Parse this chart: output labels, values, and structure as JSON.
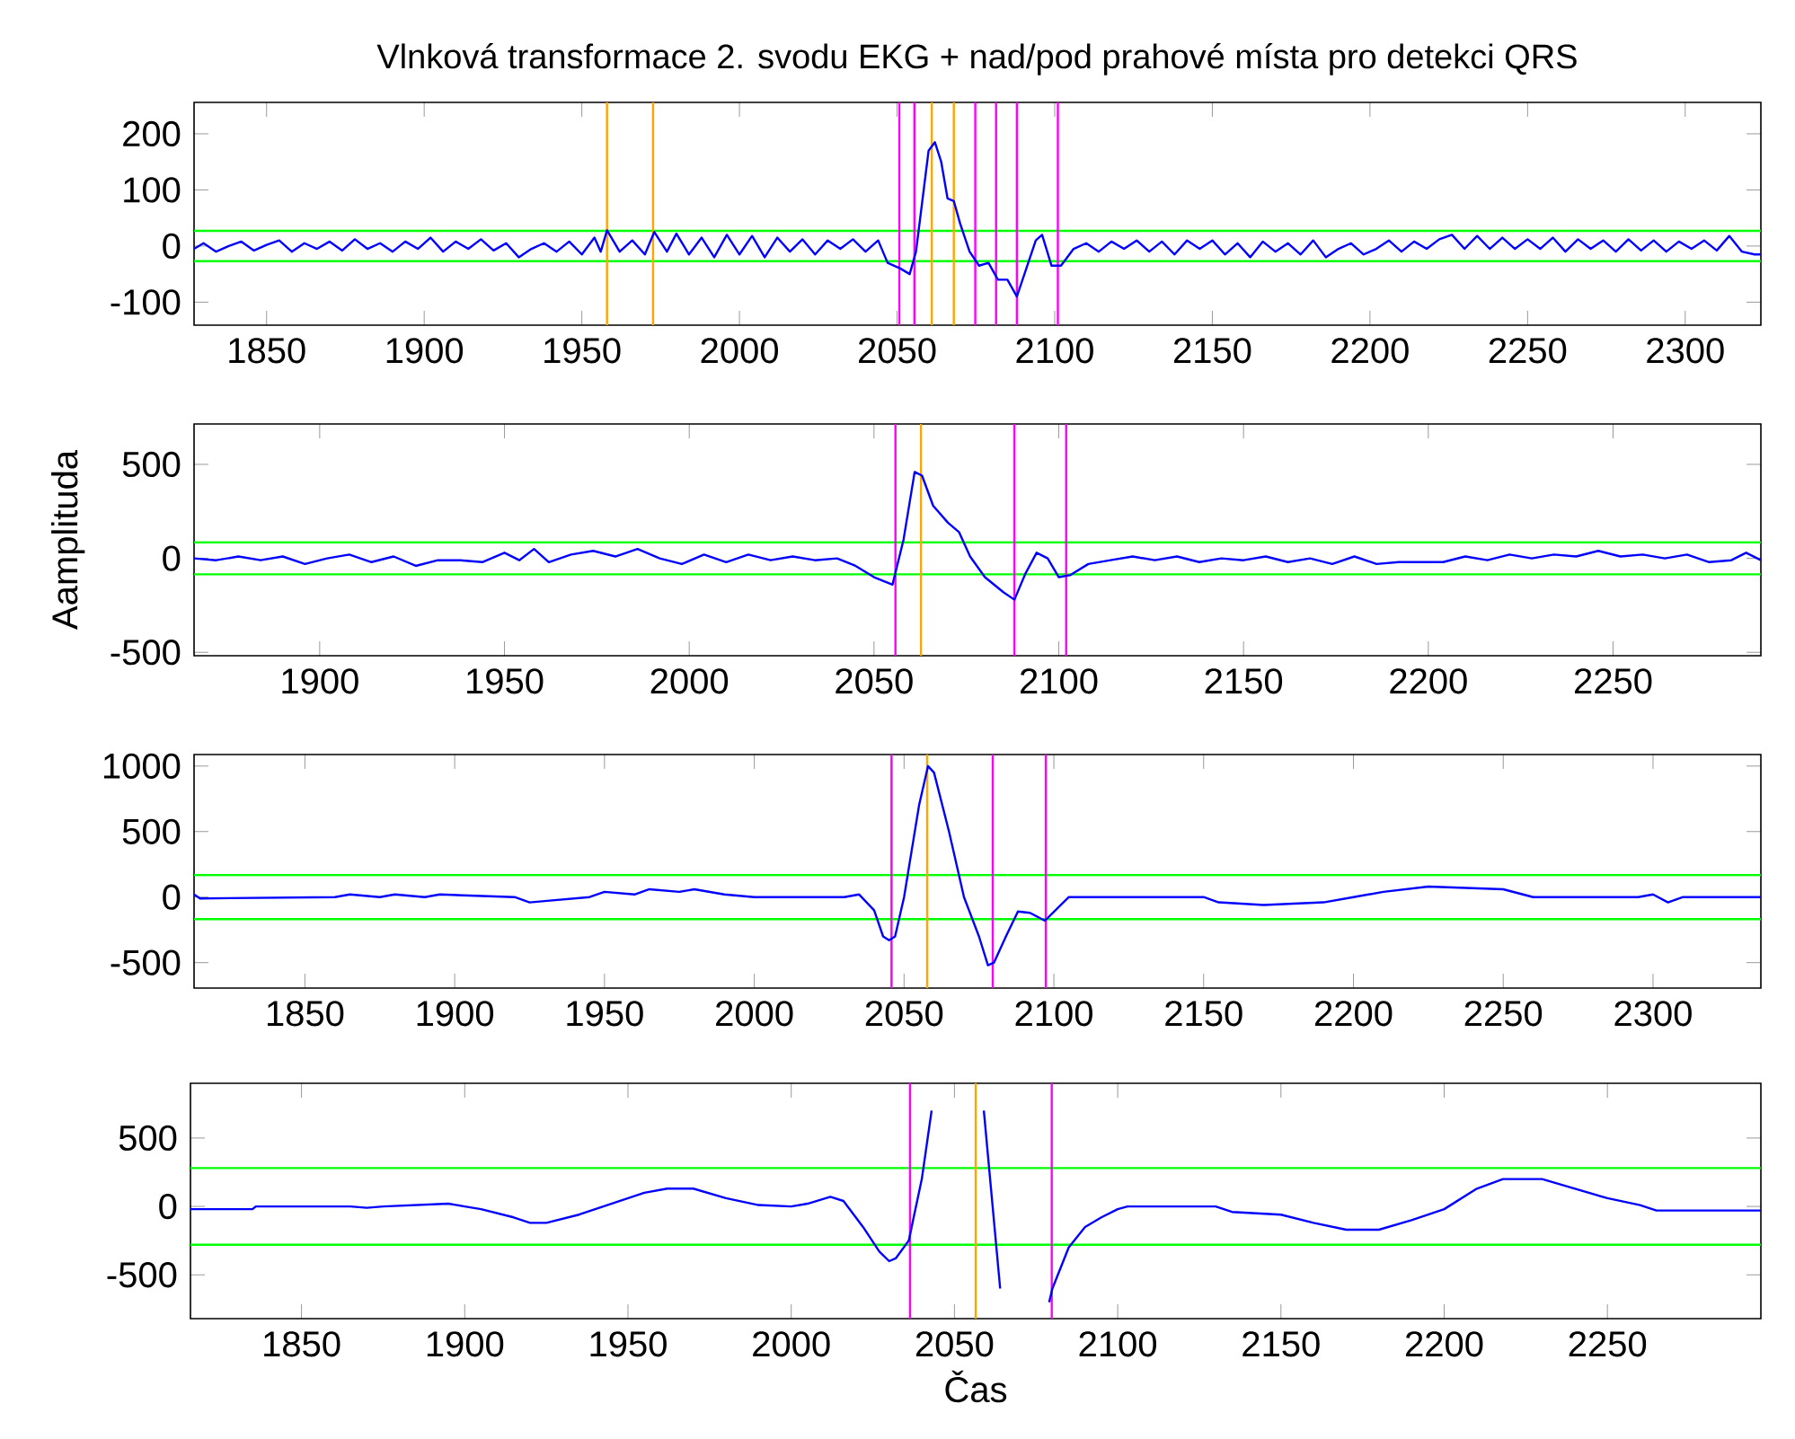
{
  "chart_data": [
    {
      "type": "line",
      "title": "Vlnková transformace 2. svodu EKG + nad/pod prahové místa pro detekci QRS",
      "x": [
        1827,
        1830,
        1834,
        1838,
        1842,
        1846,
        1850,
        1854,
        1858,
        1862,
        1866,
        1870,
        1874,
        1878,
        1882,
        1886,
        1890,
        1894,
        1898,
        1902,
        1906,
        1910,
        1914,
        1918,
        1922,
        1926,
        1930,
        1934,
        1938,
        1942,
        1946,
        1950,
        1954,
        1956,
        1958,
        1962,
        1966,
        1970,
        1973,
        1977,
        1980,
        1984,
        1988,
        1992,
        1996,
        2000,
        2004,
        2008,
        2012,
        2016,
        2020,
        2024,
        2028,
        2032,
        2036,
        2040,
        2044,
        2047,
        2051,
        2054,
        2056,
        2058,
        2060,
        2062,
        2064,
        2066,
        2068,
        2070,
        2073,
        2076,
        2079,
        2082,
        2085,
        2088,
        2091,
        2094,
        2096,
        2099,
        2102,
        2106,
        2110,
        2114,
        2118,
        2122,
        2126,
        2130,
        2134,
        2138,
        2142,
        2146,
        2150,
        2154,
        2158,
        2162,
        2166,
        2170,
        2174,
        2178,
        2182,
        2186,
        2190,
        2194,
        2198,
        2202,
        2206,
        2210,
        2214,
        2218,
        2222,
        2226,
        2230,
        2234,
        2238,
        2242,
        2246,
        2250,
        2254,
        2258,
        2262,
        2266,
        2270,
        2274,
        2278,
        2282,
        2286,
        2290,
        2294,
        2298,
        2302,
        2306,
        2310,
        2314,
        2318,
        2322,
        2324
      ],
      "series": [
        {
          "color": "#0000ff",
          "values": [
            -5,
            5,
            -10,
            0,
            8,
            -8,
            2,
            10,
            -10,
            5,
            -5,
            8,
            -8,
            12,
            -5,
            5,
            -10,
            8,
            -5,
            15,
            -10,
            8,
            -5,
            12,
            -8,
            5,
            -20,
            -5,
            5,
            -10,
            8,
            -15,
            15,
            -10,
            28,
            -10,
            10,
            -15,
            25,
            -10,
            22,
            -15,
            15,
            -20,
            20,
            -15,
            18,
            -20,
            15,
            -10,
            12,
            -15,
            10,
            -5,
            12,
            -10,
            10,
            -30,
            -40,
            -50,
            -10,
            80,
            170,
            185,
            150,
            85,
            80,
            40,
            -10,
            -35,
            -30,
            -60,
            -60,
            -90,
            -40,
            10,
            20,
            -35,
            -35,
            -5,
            5,
            -10,
            8,
            -5,
            10,
            -10,
            8,
            -15,
            10,
            -5,
            10,
            -15,
            5,
            -20,
            8,
            -10,
            5,
            -15,
            10,
            -20,
            -5,
            5,
            -15,
            -5,
            10,
            -10,
            8,
            -5,
            12,
            20,
            -5,
            18,
            -5,
            15,
            -5,
            12,
            -5,
            15,
            -10,
            12,
            -5,
            10,
            -10,
            12,
            -8,
            10,
            -10,
            8,
            -5,
            10,
            -8,
            18,
            -10,
            -15,
            -15
          ]
        }
      ],
      "xlim": [
        1827,
        2324
      ],
      "ylim": [
        -141,
        256
      ],
      "xticks": [
        1850,
        1900,
        1950,
        2000,
        2050,
        2100,
        2150,
        2200,
        2250,
        2300
      ],
      "yticks": [
        -100,
        0,
        100,
        200
      ],
      "ref_lines": [
        {
          "axis": "y",
          "value": 27,
          "color": "#00ff00"
        },
        {
          "axis": "y",
          "value": -27,
          "color": "#00ff00"
        },
        {
          "axis": "x",
          "value": 1958,
          "color": "#ffa500"
        },
        {
          "axis": "x",
          "value": 1972.6,
          "color": "#ffa500"
        },
        {
          "axis": "x",
          "value": 2050.7,
          "color": "#ff00ff"
        },
        {
          "axis": "x",
          "value": 2055.5,
          "color": "#ff00ff"
        },
        {
          "axis": "x",
          "value": 2061,
          "color": "#ffa500"
        },
        {
          "axis": "x",
          "value": 2068,
          "color": "#ffa500"
        },
        {
          "axis": "x",
          "value": 2074.8,
          "color": "#ff00ff"
        },
        {
          "axis": "x",
          "value": 2081.4,
          "color": "#ff00ff"
        },
        {
          "axis": "x",
          "value": 2088,
          "color": "#ff00ff"
        },
        {
          "axis": "x",
          "value": 2101,
          "color": "#ff00ff"
        }
      ]
    },
    {
      "type": "line",
      "ylabel": "Aamplituda",
      "x": [
        1866,
        1872,
        1878,
        1884,
        1890,
        1896,
        1902,
        1908,
        1914,
        1920,
        1926,
        1932,
        1938,
        1944,
        1950,
        1954,
        1958,
        1962,
        1968,
        1974,
        1980,
        1986,
        1992,
        1998,
        2004,
        2010,
        2016,
        2022,
        2028,
        2034,
        2040,
        2045,
        2050,
        2055,
        2058,
        2061,
        2063,
        2066,
        2070,
        2073,
        2076,
        2080,
        2085,
        2088,
        2091,
        2094,
        2097,
        2100,
        2103,
        2108,
        2114,
        2120,
        2126,
        2132,
        2138,
        2144,
        2150,
        2156,
        2162,
        2168,
        2174,
        2180,
        2186,
        2192,
        2198,
        2204,
        2210,
        2216,
        2222,
        2228,
        2234,
        2240,
        2246,
        2252,
        2258,
        2264,
        2270,
        2276,
        2282,
        2286,
        2290
      ],
      "series": [
        {
          "color": "#0000ff",
          "values": [
            0,
            -10,
            10,
            -10,
            10,
            -30,
            0,
            20,
            -20,
            10,
            -40,
            -10,
            -10,
            -20,
            30,
            -10,
            50,
            -20,
            20,
            40,
            10,
            50,
            0,
            -30,
            20,
            -20,
            20,
            -10,
            10,
            -10,
            0,
            -40,
            -100,
            -140,
            100,
            460,
            440,
            280,
            190,
            140,
            10,
            -100,
            -180,
            -220,
            -80,
            30,
            0,
            -100,
            -90,
            -30,
            -10,
            10,
            -10,
            10,
            -20,
            0,
            -10,
            10,
            -20,
            0,
            -30,
            10,
            -30,
            -20,
            -20,
            -20,
            10,
            -10,
            20,
            0,
            20,
            10,
            40,
            10,
            20,
            0,
            20,
            -20,
            -10,
            30,
            -10
          ]
        }
      ],
      "xlim": [
        1866,
        2290
      ],
      "ylim": [
        -518,
        715
      ],
      "xticks": [
        1900,
        1950,
        2000,
        2050,
        2100,
        2150,
        2200,
        2250
      ],
      "yticks": [
        -500,
        0,
        500
      ],
      "ref_lines": [
        {
          "axis": "y",
          "value": 85,
          "color": "#00ff00"
        },
        {
          "axis": "y",
          "value": -85,
          "color": "#00ff00"
        },
        {
          "axis": "x",
          "value": 2055.8,
          "color": "#ff00ff"
        },
        {
          "axis": "x",
          "value": 2062.7,
          "color": "#ffa500"
        },
        {
          "axis": "x",
          "value": 2088,
          "color": "#ff00ff"
        },
        {
          "axis": "x",
          "value": 2102,
          "color": "#ff00ff"
        }
      ]
    },
    {
      "type": "line",
      "x": [
        1813,
        1815,
        1860,
        1865,
        1875,
        1880,
        1890,
        1895,
        1920,
        1925,
        1930,
        1945,
        1950,
        1960,
        1965,
        1975,
        1980,
        1990,
        2000,
        2030,
        2035,
        2040,
        2043,
        2045,
        2047,
        2050,
        2055,
        2058,
        2060,
        2065,
        2070,
        2075,
        2078,
        2080,
        2084,
        2088,
        2092,
        2097,
        2105,
        2150,
        2155,
        2170,
        2190,
        2200,
        2210,
        2225,
        2250,
        2260,
        2295,
        2300,
        2305,
        2310,
        2320,
        2336
      ],
      "series": [
        {
          "color": "#0000ff",
          "values": [
            20,
            -10,
            0,
            20,
            0,
            20,
            0,
            20,
            0,
            -40,
            -30,
            0,
            40,
            20,
            60,
            40,
            60,
            20,
            0,
            0,
            20,
            -100,
            -300,
            -330,
            -300,
            0,
            700,
            1000,
            950,
            500,
            0,
            -300,
            -520,
            -500,
            -300,
            -110,
            -120,
            -180,
            0,
            0,
            -40,
            -60,
            -40,
            0,
            40,
            80,
            60,
            0,
            0,
            20,
            -40,
            0,
            0,
            0
          ]
        }
      ],
      "xlim": [
        1813,
        2336
      ],
      "ylim": [
        -694,
        1088
      ],
      "xticks": [
        1850,
        1900,
        1950,
        2000,
        2050,
        2100,
        2150,
        2200,
        2250,
        2300
      ],
      "yticks": [
        -500,
        0,
        500,
        1000
      ],
      "ref_lines": [
        {
          "axis": "y",
          "value": 168,
          "color": "#00ff00"
        },
        {
          "axis": "y",
          "value": -168,
          "color": "#00ff00"
        },
        {
          "axis": "x",
          "value": 2045.8,
          "color": "#ff00ff"
        },
        {
          "axis": "x",
          "value": 2057.7,
          "color": "#ffa500"
        },
        {
          "axis": "x",
          "value": 2079.6,
          "color": "#ff00ff"
        },
        {
          "axis": "x",
          "value": 2097.3,
          "color": "#ff00ff"
        }
      ]
    },
    {
      "type": "line",
      "xlabel": "Čas",
      "x": [
        1816,
        1835,
        1836,
        1865,
        1870,
        1875,
        1895,
        1900,
        1905,
        1915,
        1920,
        1925,
        1935,
        1945,
        1955,
        1962,
        1970,
        1980,
        1990,
        2000,
        2005,
        2012,
        2016,
        2022,
        2027,
        2030,
        2032,
        2036,
        2040,
        2043,
        2050,
        2059,
        2064,
        2072,
        2079,
        2080,
        2085,
        2090,
        2095,
        2100,
        2103,
        2130,
        2135,
        2150,
        2160,
        2170,
        2180,
        2190,
        2200,
        2210,
        2218,
        2230,
        2240,
        2250,
        2260,
        2265,
        2297
      ],
      "series": [
        {
          "color": "#0000ff",
          "values": [
            -20,
            -20,
            0,
            0,
            -10,
            0,
            20,
            0,
            -20,
            -80,
            -120,
            -120,
            -60,
            20,
            100,
            130,
            130,
            60,
            10,
            0,
            20,
            70,
            40,
            -150,
            -330,
            -400,
            -380,
            -250,
            200,
            700,
            null,
            700,
            -600,
            null,
            -700,
            -600,
            -300,
            -150,
            -80,
            -20,
            0,
            0,
            -40,
            -60,
            -120,
            -170,
            -170,
            -100,
            -20,
            130,
            200,
            200,
            130,
            60,
            10,
            -30,
            -30
          ]
        }
      ],
      "xlim": [
        1816,
        2297
      ],
      "ylim": [
        -820,
        900
      ],
      "xticks": [
        1850,
        1900,
        1950,
        2000,
        2050,
        2100,
        2150,
        2200,
        2250
      ],
      "yticks": [
        -500,
        0,
        500
      ],
      "ref_lines": [
        {
          "axis": "y",
          "value": 280,
          "color": "#00ff00"
        },
        {
          "axis": "y",
          "value": -280,
          "color": "#00ff00"
        },
        {
          "axis": "x",
          "value": 2036.4,
          "color": "#ff00ff"
        },
        {
          "axis": "x",
          "value": 2056.5,
          "color": "#ffa500"
        },
        {
          "axis": "x",
          "value": 2079.8,
          "color": "#ff00ff"
        }
      ]
    }
  ]
}
